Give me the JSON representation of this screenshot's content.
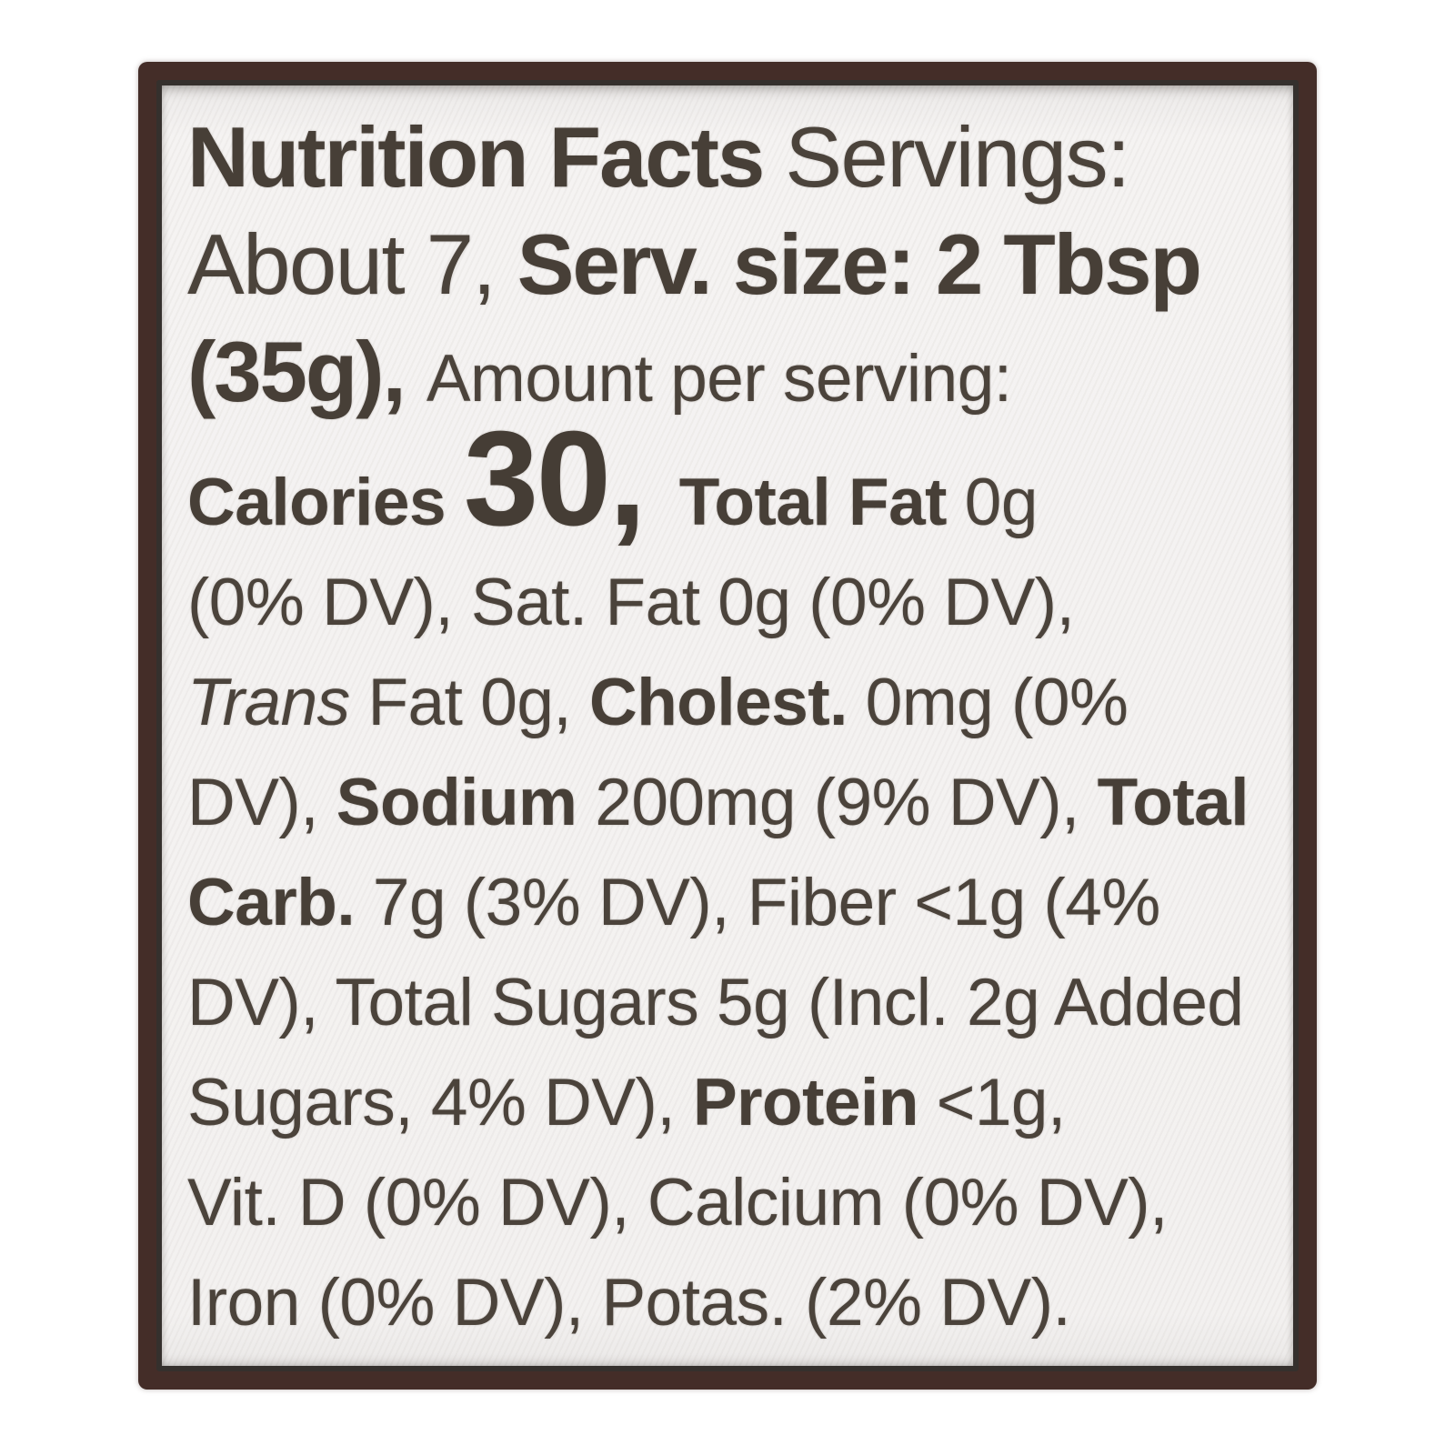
{
  "label": {
    "panel_color": "#f3f1f0",
    "border_color": "#442d28",
    "inner_rule_color": "#35302d",
    "text_color": "#4b433b",
    "nutrition": {
      "title": "Nutrition Facts",
      "servings": "About 7",
      "serving_size": "2 Tbsp (35g)",
      "calories": "30",
      "total_fat": "0g (0% DV)",
      "saturated_fat": "0g (0% DV)",
      "trans_fat": "0g",
      "cholesterol": "0mg (0% DV)",
      "sodium": "200mg (9% DV)",
      "total_carbohydrate": "7g (3% DV)",
      "fiber": "<1g (4% DV)",
      "total_sugars": "5g (Incl. 2g Added Sugars, 4% DV)",
      "protein": "<1g",
      "vitamin_d": "0% DV",
      "calcium": "0% DV",
      "iron": "0% DV",
      "potassium": "2% DV"
    },
    "lines": [
      {
        "segments": [
          {
            "text": "Nutrition Facts "
          },
          {
            "text": "Servings:"
          }
        ]
      },
      {
        "segments": [
          {
            "text": "About 7, "
          },
          {
            "text": "Serv. size: 2 Tbsp"
          }
        ]
      },
      {
        "segments": [
          {
            "text": "(35g), "
          },
          {
            "text": "Amount per serving:"
          }
        ]
      },
      {
        "segments": [
          {
            "text": "Calories "
          },
          {
            "text": "30, "
          },
          {
            "text": "Total Fat "
          },
          {
            "text": "0g"
          }
        ]
      },
      {
        "segments": [
          {
            "text": "(0% DV), Sat. Fat 0g (0% DV),"
          }
        ]
      },
      {
        "segments": [
          {
            "text": "Trans "
          },
          {
            "text": "Fat 0g, "
          },
          {
            "text": "Cholest. "
          },
          {
            "text": "0mg (0%"
          }
        ]
      },
      {
        "segments": [
          {
            "text": "DV), "
          },
          {
            "text": "Sodium "
          },
          {
            "text": "200mg (9% DV), "
          },
          {
            "text": "Total"
          }
        ]
      },
      {
        "segments": [
          {
            "text": "Carb. "
          },
          {
            "text": "7g (3% DV), Fiber <1g (4%"
          }
        ]
      },
      {
        "segments": [
          {
            "text": "DV), Total Sugars 5g (Incl. 2g Added"
          }
        ]
      },
      {
        "segments": [
          {
            "text": "Sugars, 4% DV), "
          },
          {
            "text": "Protein "
          },
          {
            "text": "<1g,"
          }
        ]
      },
      {
        "segments": [
          {
            "text": "Vit. D (0% DV), Calcium (0% DV),"
          }
        ]
      },
      {
        "segments": [
          {
            "text": "Iron (0% DV), Potas. (2% DV)."
          }
        ]
      }
    ]
  }
}
